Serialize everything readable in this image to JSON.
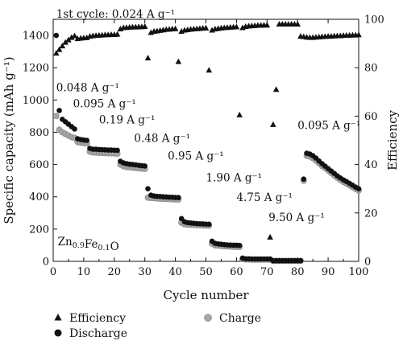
{
  "chart_data": {
    "type": "scatter",
    "xlabel": "Cycle number",
    "ylabel": "Specific capacity (mAh g⁻¹)",
    "y2label": "Efficiency",
    "xlim": [
      0,
      100
    ],
    "ylim": [
      0,
      1500
    ],
    "y2lim": [
      0,
      100
    ],
    "xticks": [
      0,
      10,
      20,
      30,
      40,
      50,
      60,
      70,
      80,
      90,
      100
    ],
    "yticks": [
      0,
      200,
      400,
      600,
      800,
      1000,
      1200,
      1400
    ],
    "y2ticks": [
      0,
      20,
      40,
      60,
      80,
      100
    ],
    "grid": false,
    "annotations": [
      {
        "text": "1st cycle: 0.024 A g⁻¹",
        "x": 1,
        "y": 1510
      },
      {
        "text": "0.048 A g⁻¹",
        "x": 1,
        "y": 1055
      },
      {
        "text": "0.095 A g⁻¹",
        "x": 6.5,
        "y": 955
      },
      {
        "text": "0.19 A g⁻¹",
        "x": 15,
        "y": 855
      },
      {
        "text": "0.48 A g⁻¹",
        "x": 26.5,
        "y": 740
      },
      {
        "text": "0.95 A g⁻¹",
        "x": 37.5,
        "y": 630
      },
      {
        "text": "1.90 A g⁻¹",
        "x": 50,
        "y": 495
      },
      {
        "text": "4.75 A g⁻¹",
        "x": 60,
        "y": 375
      },
      {
        "text": "9.50 A g⁻¹",
        "x": 70.5,
        "y": 250
      },
      {
        "text": "0.095 A g⁻¹",
        "x": 80,
        "y": 820
      },
      {
        "text": "Zn₀.₉Fe₀.₁O",
        "x": 1.5,
        "y": 100
      }
    ],
    "sample_label": {
      "main": [
        "Zn",
        "Fe",
        "O"
      ],
      "subs": [
        "0.9",
        "0.1"
      ]
    },
    "legend": [
      {
        "name": "Efficiency",
        "marker": "triangle",
        "color": "#111111"
      },
      {
        "name": "Discharge",
        "marker": "circle",
        "color": "#111111"
      },
      {
        "name": "Charge",
        "marker": "circle",
        "color": "#a6a6a6"
      }
    ],
    "series": [
      {
        "name": "Discharge",
        "axis": "left",
        "x": [
          1,
          2,
          3,
          4,
          5,
          6,
          7,
          8,
          9,
          10,
          11,
          12,
          13,
          14,
          15,
          16,
          17,
          18,
          19,
          20,
          21,
          22,
          23,
          24,
          25,
          26,
          27,
          28,
          29,
          30,
          31,
          32,
          33,
          34,
          35,
          36,
          37,
          38,
          39,
          40,
          41,
          42,
          43,
          44,
          45,
          46,
          47,
          48,
          49,
          50,
          51,
          52,
          53,
          54,
          55,
          56,
          57,
          58,
          59,
          60,
          61,
          62,
          63,
          64,
          65,
          66,
          67,
          68,
          69,
          70,
          71,
          72,
          73,
          74,
          75,
          76,
          77,
          78,
          79,
          80,
          81,
          82,
          83,
          84,
          85,
          86,
          87,
          88,
          89,
          90,
          91,
          92,
          93,
          94,
          95,
          96,
          97,
          98,
          99,
          100
        ],
        "y": [
          1400,
          935,
          880,
          865,
          850,
          835,
          820,
          760,
          755,
          752,
          750,
          700,
          695,
          695,
          693,
          692,
          691,
          690,
          690,
          689,
          688,
          620,
          610,
          605,
          602,
          600,
          598,
          595,
          593,
          591,
          450,
          410,
          405,
          403,
          402,
          400,
          399,
          398,
          397,
          396,
          395,
          265,
          245,
          240,
          238,
          236,
          234,
          233,
          232,
          231,
          230,
          125,
          112,
          108,
          106,
          104,
          102,
          101,
          100,
          100,
          99,
          20,
          16,
          16,
          15,
          15,
          15,
          15,
          15,
          15,
          15,
          4,
          4,
          4,
          4,
          4,
          4,
          4,
          4,
          4,
          4,
          510,
          670,
          665,
          655,
          640,
          622,
          605,
          590,
          575,
          560,
          545,
          530,
          517,
          505,
          495,
          483,
          472,
          460,
          450
        ]
      },
      {
        "name": "Charge",
        "axis": "left",
        "x": [
          1,
          2,
          3,
          4,
          5,
          6,
          7,
          8,
          9,
          10,
          11,
          12,
          13,
          14,
          15,
          16,
          17,
          18,
          19,
          20,
          21,
          22,
          23,
          24,
          25,
          26,
          27,
          28,
          29,
          30,
          31,
          32,
          33,
          34,
          35,
          36,
          37,
          38,
          39,
          40,
          41,
          42,
          43,
          44,
          45,
          46,
          47,
          48,
          49,
          50,
          51,
          52,
          53,
          54,
          55,
          56,
          57,
          58,
          59,
          60,
          61,
          62,
          63,
          64,
          65,
          66,
          67,
          68,
          69,
          70,
          71,
          72,
          73,
          74,
          75,
          76,
          77,
          78,
          79,
          80,
          81,
          82,
          83,
          84,
          85,
          86,
          87,
          88,
          89,
          90,
          91,
          92,
          93,
          94,
          95,
          96,
          97,
          98,
          99,
          100
        ],
        "y": [
          900,
          815,
          800,
          790,
          780,
          770,
          765,
          740,
          735,
          733,
          731,
          680,
          675,
          674,
          673,
          672,
          671,
          670,
          670,
          669,
          668,
          600,
          590,
          585,
          583,
          581,
          579,
          577,
          575,
          573,
          395,
          393,
          392,
          390,
          389,
          388,
          387,
          386,
          385,
          384,
          383,
          240,
          230,
          228,
          227,
          226,
          225,
          224,
          223,
          222,
          221,
          110,
          100,
          98,
          96,
          94,
          93,
          92,
          91,
          90,
          89,
          14,
          12,
          12,
          11,
          11,
          11,
          11,
          11,
          11,
          11,
          3,
          3,
          3,
          3,
          3,
          3,
          3,
          3,
          3,
          3,
          500,
          655,
          650,
          640,
          625,
          608,
          592,
          578,
          563,
          548,
          533,
          518,
          505,
          493,
          482,
          471,
          460,
          449,
          440
        ]
      },
      {
        "name": "Efficiency",
        "axis": "right",
        "x": [
          1,
          2,
          3,
          4,
          5,
          6,
          7,
          8,
          9,
          10,
          11,
          12,
          13,
          14,
          15,
          16,
          17,
          18,
          19,
          20,
          21,
          22,
          23,
          24,
          25,
          26,
          27,
          28,
          29,
          30,
          31,
          32,
          33,
          34,
          35,
          36,
          37,
          38,
          39,
          40,
          41,
          42,
          43,
          44,
          45,
          46,
          47,
          48,
          49,
          50,
          51,
          52,
          53,
          54,
          55,
          56,
          57,
          58,
          59,
          60,
          61,
          62,
          63,
          64,
          65,
          66,
          67,
          68,
          69,
          70,
          71,
          72,
          73,
          74,
          75,
          76,
          77,
          78,
          79,
          80,
          81,
          82,
          83,
          84,
          85,
          86,
          87,
          88,
          89,
          90,
          91,
          92,
          93,
          94,
          95,
          96,
          97,
          98,
          99,
          100
        ],
        "y": [
          86,
          87.5,
          89,
          90.5,
          91.5,
          92.5,
          93.2,
          92,
          92.2,
          92.3,
          92.4,
          93,
          93.2,
          93.3,
          93.4,
          93.5,
          93.6,
          93.6,
          93.7,
          93.7,
          93.8,
          96,
          96.5,
          96.6,
          96.7,
          96.8,
          96.8,
          96.9,
          96.9,
          97,
          84,
          94.5,
          95,
          95.2,
          95.4,
          95.6,
          95.8,
          95.9,
          96,
          96.1,
          82.5,
          95,
          95.5,
          95.7,
          95.9,
          96,
          96.1,
          96.2,
          96.3,
          96.4,
          79,
          95.5,
          96,
          96.2,
          96.4,
          96.5,
          96.6,
          96.7,
          96.8,
          96.9,
          60.5,
          96.5,
          97,
          97.2,
          97.3,
          97.4,
          97.5,
          97.5,
          97.6,
          97.6,
          10,
          56.5,
          71,
          98,
          98,
          98,
          98,
          98,
          98,
          98,
          93,
          92.8,
          92.6,
          92.5,
          92.5,
          92.6,
          92.7,
          92.8,
          92.9,
          93,
          93,
          93.1,
          93.2,
          93.2,
          93.3,
          93.4,
          93.4,
          93.5,
          93.5,
          93.6
        ]
      }
    ]
  }
}
